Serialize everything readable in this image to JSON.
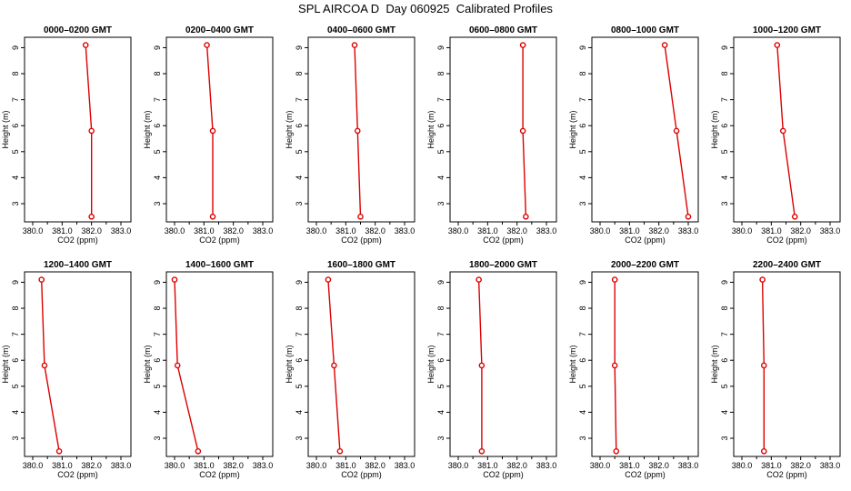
{
  "title": "SPL AIRCOA D  Day 060925  Calibrated Profiles",
  "colors": {
    "profile": "#dd0000",
    "axis": "#000000",
    "background": "#ffffff"
  },
  "chart_data": [
    {
      "type": "line",
      "title": "0000–0200 GMT",
      "xlabel": "CO2 (ppm)",
      "ylabel": "Height (m)",
      "xlim": [
        380.0,
        383.0
      ],
      "ylim": [
        2.3,
        9.4
      ],
      "xticks": [
        "380.0",
        "381.0",
        "382.0",
        "383.0"
      ],
      "yticks": [
        "3",
        "4",
        "5",
        "6",
        "7",
        "8",
        "9"
      ],
      "x": [
        381.8,
        382.0,
        382.0
      ],
      "y": [
        9.1,
        5.8,
        2.5
      ]
    },
    {
      "type": "line",
      "title": "0200–0400 GMT",
      "xlabel": "CO2 (ppm)",
      "ylabel": "Height (m)",
      "xlim": [
        380.0,
        383.0
      ],
      "ylim": [
        2.3,
        9.4
      ],
      "xticks": [
        "380.0",
        "381.0",
        "382.0",
        "383.0"
      ],
      "yticks": [
        "3",
        "4",
        "5",
        "6",
        "7",
        "8",
        "9"
      ],
      "x": [
        381.1,
        381.3,
        381.3
      ],
      "y": [
        9.1,
        5.8,
        2.5
      ]
    },
    {
      "type": "line",
      "title": "0400–0600 GMT",
      "xlabel": "CO2 (ppm)",
      "ylabel": "Height (m)",
      "xlim": [
        380.0,
        383.0
      ],
      "ylim": [
        2.3,
        9.4
      ],
      "xticks": [
        "380.0",
        "381.0",
        "382.0",
        "383.0"
      ],
      "yticks": [
        "3",
        "4",
        "5",
        "6",
        "7",
        "8",
        "9"
      ],
      "x": [
        381.3,
        381.4,
        381.5
      ],
      "y": [
        9.1,
        5.8,
        2.5
      ]
    },
    {
      "type": "line",
      "title": "0600–0800 GMT",
      "xlabel": "CO2 (ppm)",
      "ylabel": "Height (m)",
      "xlim": [
        380.0,
        383.0
      ],
      "ylim": [
        2.3,
        9.4
      ],
      "xticks": [
        "380.0",
        "381.0",
        "382.0",
        "383.0"
      ],
      "yticks": [
        "3",
        "4",
        "5",
        "6",
        "7",
        "8",
        "9"
      ],
      "x": [
        382.2,
        382.2,
        382.3
      ],
      "y": [
        9.1,
        5.8,
        2.5
      ]
    },
    {
      "type": "line",
      "title": "0800–1000 GMT",
      "xlabel": "CO2 (ppm)",
      "ylabel": "Height (m)",
      "xlim": [
        380.0,
        383.0
      ],
      "ylim": [
        2.3,
        9.4
      ],
      "xticks": [
        "380.0",
        "381.0",
        "382.0",
        "383.0"
      ],
      "yticks": [
        "3",
        "4",
        "5",
        "6",
        "7",
        "8",
        "9"
      ],
      "x": [
        382.2,
        382.6,
        383.0
      ],
      "y": [
        9.1,
        5.8,
        2.5
      ]
    },
    {
      "type": "line",
      "title": "1000–1200 GMT",
      "xlabel": "CO2 (ppm)",
      "ylabel": "Height (m)",
      "xlim": [
        380.0,
        383.0
      ],
      "ylim": [
        2.3,
        9.4
      ],
      "xticks": [
        "380.0",
        "381.0",
        "382.0",
        "383.0"
      ],
      "yticks": [
        "3",
        "4",
        "5",
        "6",
        "7",
        "8",
        "9"
      ],
      "x": [
        381.2,
        381.4,
        381.8
      ],
      "y": [
        9.1,
        5.8,
        2.5
      ]
    },
    {
      "type": "line",
      "title": "1200–1400 GMT",
      "xlabel": "CO2 (ppm)",
      "ylabel": "Height (m)",
      "xlim": [
        380.0,
        383.0
      ],
      "ylim": [
        2.3,
        9.4
      ],
      "xticks": [
        "380.0",
        "381.0",
        "382.0",
        "383.0"
      ],
      "yticks": [
        "3",
        "4",
        "5",
        "6",
        "7",
        "8",
        "9"
      ],
      "x": [
        380.3,
        380.4,
        380.9
      ],
      "y": [
        9.1,
        5.8,
        2.5
      ]
    },
    {
      "type": "line",
      "title": "1400–1600 GMT",
      "xlabel": "CO2 (ppm)",
      "ylabel": "Height (m)",
      "xlim": [
        380.0,
        383.0
      ],
      "ylim": [
        2.3,
        9.4
      ],
      "xticks": [
        "380.0",
        "381.0",
        "382.0",
        "383.0"
      ],
      "yticks": [
        "3",
        "4",
        "5",
        "6",
        "7",
        "8",
        "9"
      ],
      "x": [
        380.0,
        380.1,
        380.8
      ],
      "y": [
        9.1,
        5.8,
        2.5
      ]
    },
    {
      "type": "line",
      "title": "1600–1800 GMT",
      "xlabel": "CO2 (ppm)",
      "ylabel": "Height (m)",
      "xlim": [
        380.0,
        383.0
      ],
      "ylim": [
        2.3,
        9.4
      ],
      "xticks": [
        "380.0",
        "381.0",
        "382.0",
        "383.0"
      ],
      "yticks": [
        "3",
        "4",
        "5",
        "6",
        "7",
        "8",
        "9"
      ],
      "x": [
        380.4,
        380.6,
        380.8
      ],
      "y": [
        9.1,
        5.8,
        2.5
      ]
    },
    {
      "type": "line",
      "title": "1800–2000 GMT",
      "xlabel": "CO2 (ppm)",
      "ylabel": "Height (m)",
      "xlim": [
        380.0,
        383.0
      ],
      "ylim": [
        2.3,
        9.4
      ],
      "xticks": [
        "380.0",
        "381.0",
        "382.0",
        "383.0"
      ],
      "yticks": [
        "3",
        "4",
        "5",
        "6",
        "7",
        "8",
        "9"
      ],
      "x": [
        380.7,
        380.8,
        380.8
      ],
      "y": [
        9.1,
        5.8,
        2.5
      ]
    },
    {
      "type": "line",
      "title": "2000–2200 GMT",
      "xlabel": "CO2 (ppm)",
      "ylabel": "Height (m)",
      "xlim": [
        380.0,
        383.0
      ],
      "ylim": [
        2.3,
        9.4
      ],
      "xticks": [
        "380.0",
        "381.0",
        "382.0",
        "383.0"
      ],
      "yticks": [
        "3",
        "4",
        "5",
        "6",
        "7",
        "8",
        "9"
      ],
      "x": [
        380.5,
        380.5,
        380.55
      ],
      "y": [
        9.1,
        5.8,
        2.5
      ]
    },
    {
      "type": "line",
      "title": "2200–2400 GMT",
      "xlabel": "CO2 (ppm)",
      "ylabel": "Height (m)",
      "xlim": [
        380.0,
        383.0
      ],
      "ylim": [
        2.3,
        9.4
      ],
      "xticks": [
        "380.0",
        "381.0",
        "382.0",
        "383.0"
      ],
      "yticks": [
        "3",
        "4",
        "5",
        "6",
        "7",
        "8",
        "9"
      ],
      "x": [
        380.7,
        380.75,
        380.75
      ],
      "y": [
        9.1,
        5.8,
        2.5
      ]
    }
  ]
}
